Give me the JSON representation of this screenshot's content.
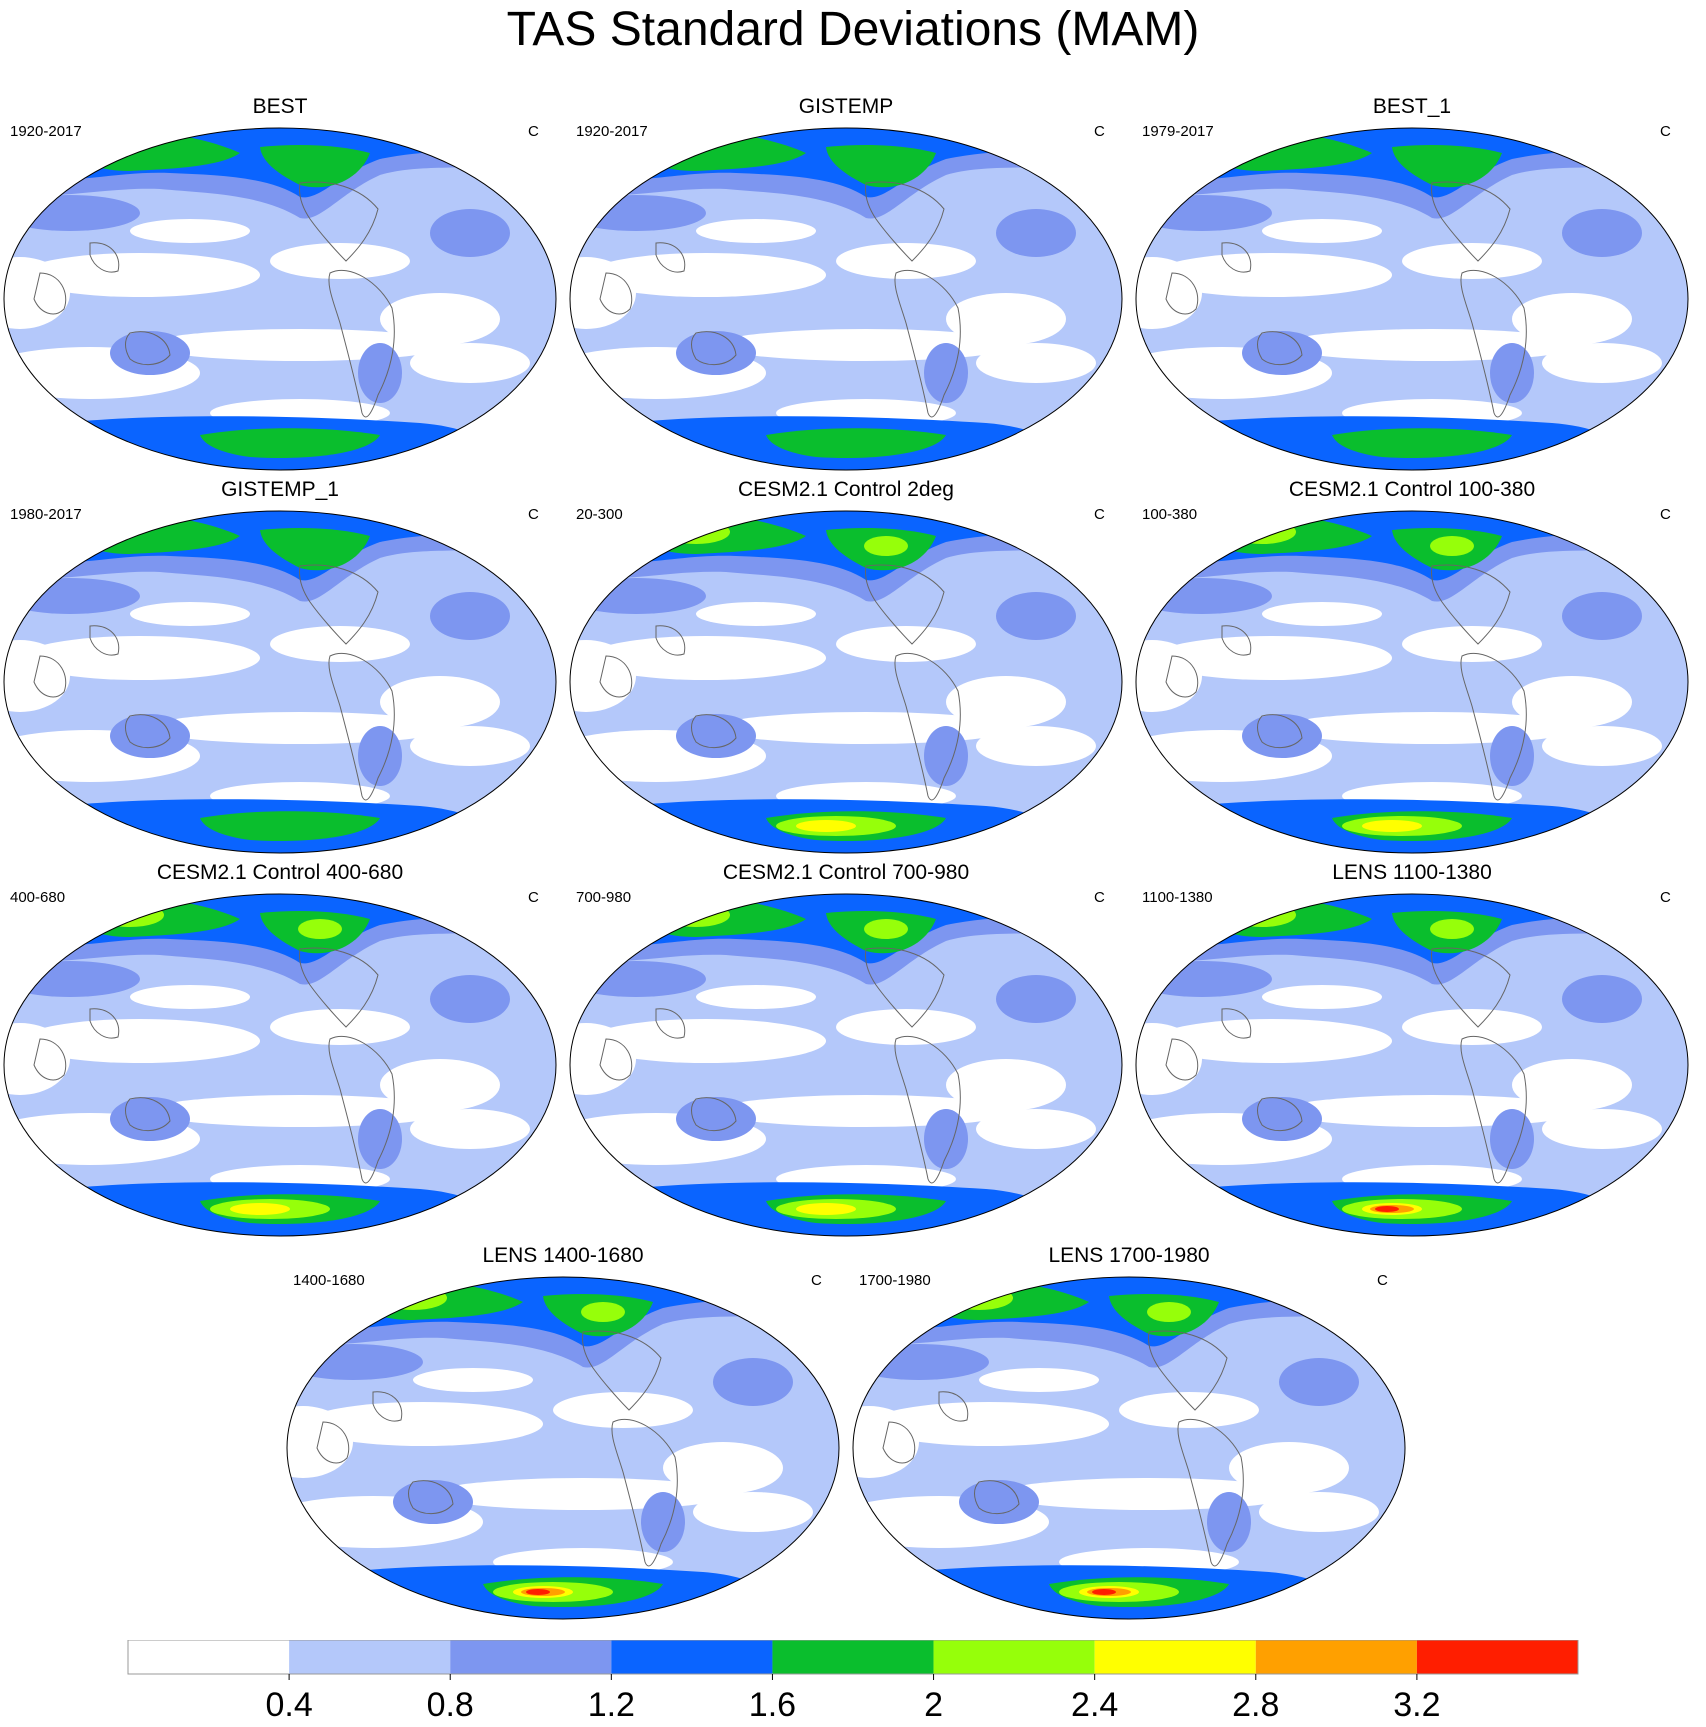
{
  "title": "TAS Standard Deviations (MAM)",
  "panels": [
    {
      "title": "BEST",
      "period": "1920-2017",
      "unit": "C"
    },
    {
      "title": "GISTEMP",
      "period": "1920-2017",
      "unit": "C"
    },
    {
      "title": "BEST_1",
      "period": "1979-2017",
      "unit": "C"
    },
    {
      "title": "GISTEMP_1",
      "period": "1980-2017",
      "unit": "C"
    },
    {
      "title": "CESM2.1 Control 2deg",
      "period": "20-300",
      "unit": "C"
    },
    {
      "title": "CESM2.1 Control 100-380",
      "period": "100-380",
      "unit": "C"
    },
    {
      "title": "CESM2.1 Control 400-680",
      "period": "400-680",
      "unit": "C"
    },
    {
      "title": "CESM2.1 Control 700-980",
      "period": "700-980",
      "unit": "C"
    },
    {
      "title": "LENS 1100-1380",
      "period": "1100-1380",
      "unit": "C"
    },
    {
      "title": "LENS 1400-1680",
      "period": "1400-1680",
      "unit": "C"
    },
    {
      "title": "LENS 1700-1980",
      "period": "1700-1980",
      "unit": "C"
    }
  ],
  "chart_data": {
    "type": "heatmap",
    "title": "TAS Standard Deviations (MAM)",
    "colorbar": {
      "levels": [
        0.4,
        0.8,
        1.2,
        1.6,
        2,
        2.4,
        2.8,
        3.2
      ],
      "labels": [
        "0.4",
        "0.8",
        "1.2",
        "1.6",
        "2",
        "2.4",
        "2.8",
        "3.2"
      ],
      "colors": [
        "#ffffff",
        "#b4c8fa",
        "#7d96f0",
        "#0a64ff",
        "#0abe2d",
        "#96ff0a",
        "#ffff00",
        "#ffa000",
        "#ff1e00"
      ]
    },
    "projection": "Robinson-like, Pacific-centred"
  }
}
